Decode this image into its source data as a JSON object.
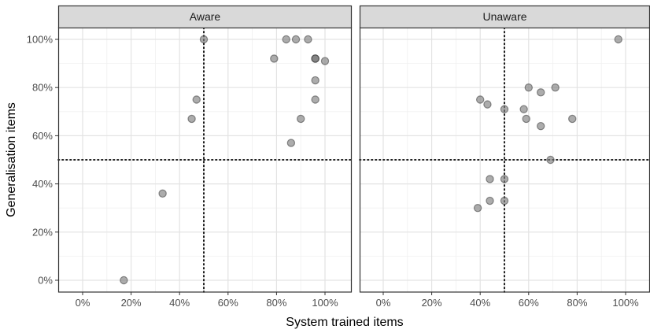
{
  "chart_data": {
    "type": "scatter",
    "xlabel": "System trained items",
    "ylabel": "Generalisation items",
    "xlim": [
      -0.1,
      1.1
    ],
    "ylim": [
      -0.05,
      1.05
    ],
    "x_ticks": [
      "0%",
      "20%",
      "40%",
      "60%",
      "80%",
      "100%"
    ],
    "y_ticks": [
      "0%",
      "20%",
      "40%",
      "60%",
      "80%",
      "100%"
    ],
    "x_tick_values": [
      0,
      0.2,
      0.4,
      0.6,
      0.8,
      1.0
    ],
    "y_tick_values": [
      0,
      0.2,
      0.4,
      0.6,
      0.8,
      1.0
    ],
    "reference_lines": {
      "x": 0.5,
      "y": 0.5,
      "style": "dotted"
    },
    "grid": true,
    "point_color": "#7f7f7f",
    "panels": [
      {
        "name": "Aware",
        "points": [
          {
            "x": 0.17,
            "y": 0.0
          },
          {
            "x": 0.33,
            "y": 0.36
          },
          {
            "x": 0.45,
            "y": 0.67
          },
          {
            "x": 0.47,
            "y": 0.75
          },
          {
            "x": 0.5,
            "y": 1.0
          },
          {
            "x": 0.79,
            "y": 0.92
          },
          {
            "x": 0.84,
            "y": 1.0
          },
          {
            "x": 0.88,
            "y": 1.0
          },
          {
            "x": 0.93,
            "y": 1.0
          },
          {
            "x": 0.86,
            "y": 0.57
          },
          {
            "x": 0.9,
            "y": 0.67
          },
          {
            "x": 0.96,
            "y": 0.75
          },
          {
            "x": 0.96,
            "y": 0.83
          },
          {
            "x": 0.96,
            "y": 0.92
          },
          {
            "x": 0.96,
            "y": 0.92
          },
          {
            "x": 0.96,
            "y": 0.92
          },
          {
            "x": 1.0,
            "y": 0.91
          }
        ]
      },
      {
        "name": "Unaware",
        "points": [
          {
            "x": 0.39,
            "y": 0.3
          },
          {
            "x": 0.4,
            "y": 0.75
          },
          {
            "x": 0.43,
            "y": 0.73
          },
          {
            "x": 0.44,
            "y": 0.33
          },
          {
            "x": 0.44,
            "y": 0.42
          },
          {
            "x": 0.5,
            "y": 0.33
          },
          {
            "x": 0.5,
            "y": 0.42
          },
          {
            "x": 0.5,
            "y": 0.71
          },
          {
            "x": 0.58,
            "y": 0.71
          },
          {
            "x": 0.59,
            "y": 0.67
          },
          {
            "x": 0.6,
            "y": 0.8
          },
          {
            "x": 0.65,
            "y": 0.64
          },
          {
            "x": 0.65,
            "y": 0.78
          },
          {
            "x": 0.69,
            "y": 0.5
          },
          {
            "x": 0.71,
            "y": 0.8
          },
          {
            "x": 0.78,
            "y": 0.67
          },
          {
            "x": 0.97,
            "y": 1.0
          }
        ]
      }
    ]
  }
}
